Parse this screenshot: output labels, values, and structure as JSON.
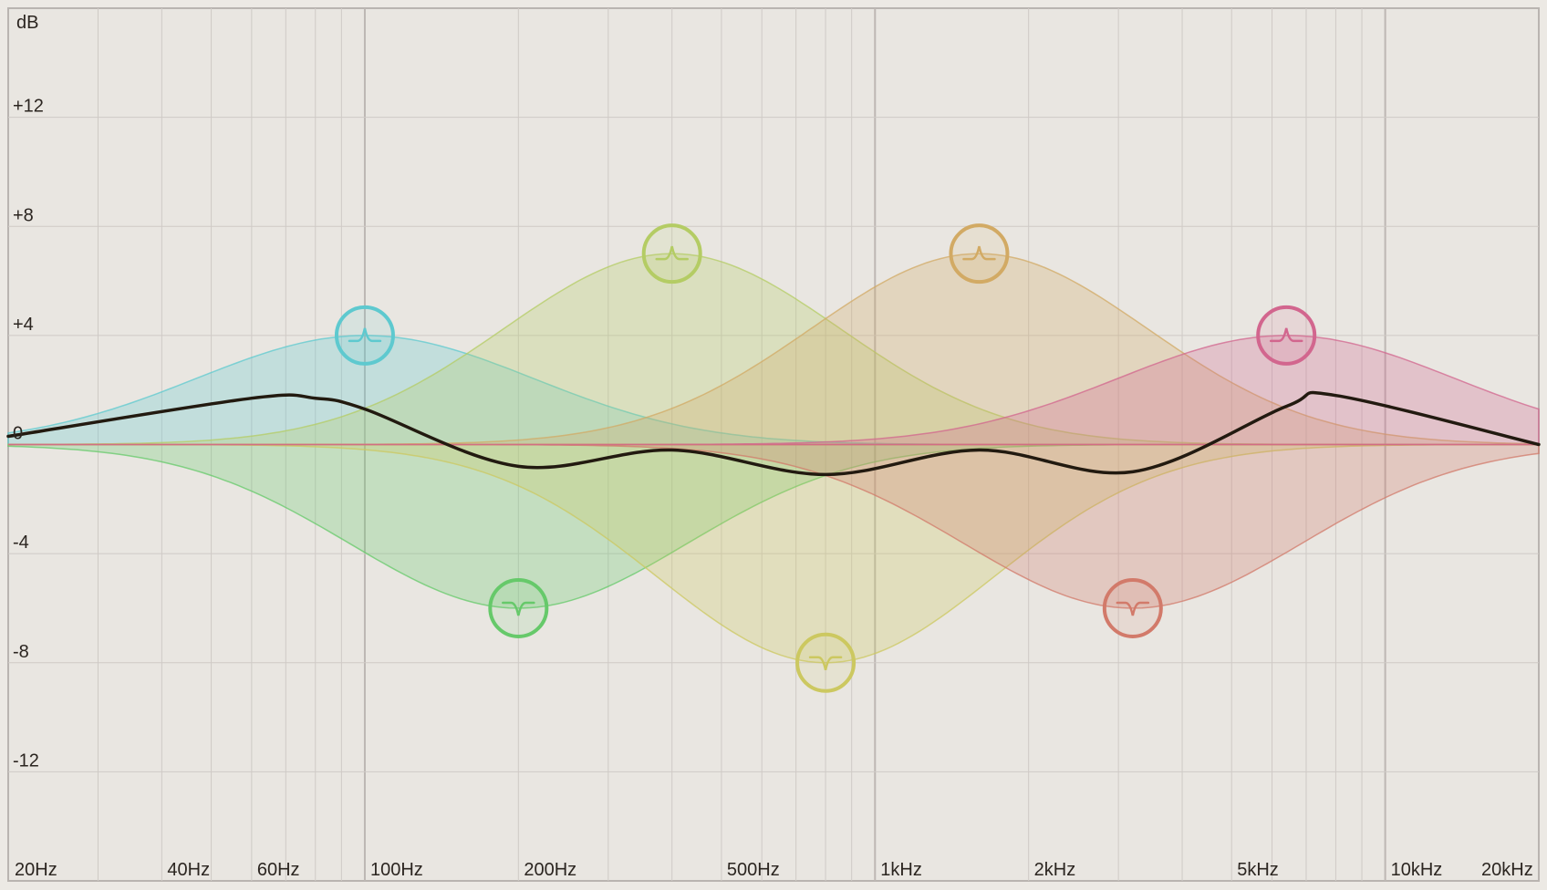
{
  "eq": {
    "db_unit": "dB",
    "colors": {
      "background": "#e9e6e1",
      "grid": "#cfcac6",
      "grid_major": "#bdb7b3",
      "frame": "#b9b4b0",
      "curve": "#221a10"
    }
  },
  "chart_data": {
    "type": "area",
    "title": "",
    "xlabel": "",
    "ylabel": "dB",
    "x_scale": "log",
    "xlim": [
      20,
      20000
    ],
    "ylim": [
      -16,
      16
    ],
    "y_ticks": [
      {
        "value": 12,
        "label": "+12"
      },
      {
        "value": 8,
        "label": "+8"
      },
      {
        "value": 4,
        "label": "+4"
      },
      {
        "value": 0,
        "label": "0"
      },
      {
        "value": -4,
        "label": "-4"
      },
      {
        "value": -8,
        "label": "-8"
      },
      {
        "value": -12,
        "label": "-12"
      }
    ],
    "x_ticks": [
      {
        "value": 20,
        "label": "20Hz"
      },
      {
        "value": 40,
        "label": "40Hz"
      },
      {
        "value": 60,
        "label": "60Hz"
      },
      {
        "value": 100,
        "label": "100Hz"
      },
      {
        "value": 200,
        "label": "200Hz"
      },
      {
        "value": 500,
        "label": "500Hz"
      },
      {
        "value": 1000,
        "label": "1kHz"
      },
      {
        "value": 2000,
        "label": "2kHz"
      },
      {
        "value": 5000,
        "label": "5kHz"
      },
      {
        "value": 10000,
        "label": "10kHz"
      },
      {
        "value": 20000,
        "label": "20kHz"
      }
    ],
    "bands": [
      {
        "id": "band-1",
        "freq": 100,
        "gain": 4,
        "shape": "bell",
        "color": "#5ec9cf"
      },
      {
        "id": "band-2",
        "freq": 200,
        "gain": -6,
        "shape": "bell",
        "color": "#66c96a"
      },
      {
        "id": "band-3",
        "freq": 400,
        "gain": 7,
        "shape": "bell",
        "color": "#b4cc64"
      },
      {
        "id": "band-4",
        "freq": 800,
        "gain": -8,
        "shape": "bell",
        "color": "#ccc860"
      },
      {
        "id": "band-5",
        "freq": 1600,
        "gain": 7,
        "shape": "bell",
        "color": "#d2aa64"
      },
      {
        "id": "band-6",
        "freq": 3200,
        "gain": -6,
        "shape": "bell",
        "color": "#d27a6a"
      },
      {
        "id": "band-7",
        "freq": 6400,
        "gain": 4,
        "shape": "bell",
        "color": "#d2668e"
      }
    ],
    "combined_curve": {
      "x": [
        20,
        60,
        80,
        100,
        200,
        400,
        800,
        1600,
        3200,
        6400,
        8000,
        20000
      ],
      "y": [
        0.3,
        1.7,
        1.7,
        1.3,
        -0.8,
        -0.2,
        -1.1,
        -0.2,
        -1.0,
        1.4,
        1.8,
        0
      ]
    }
  }
}
